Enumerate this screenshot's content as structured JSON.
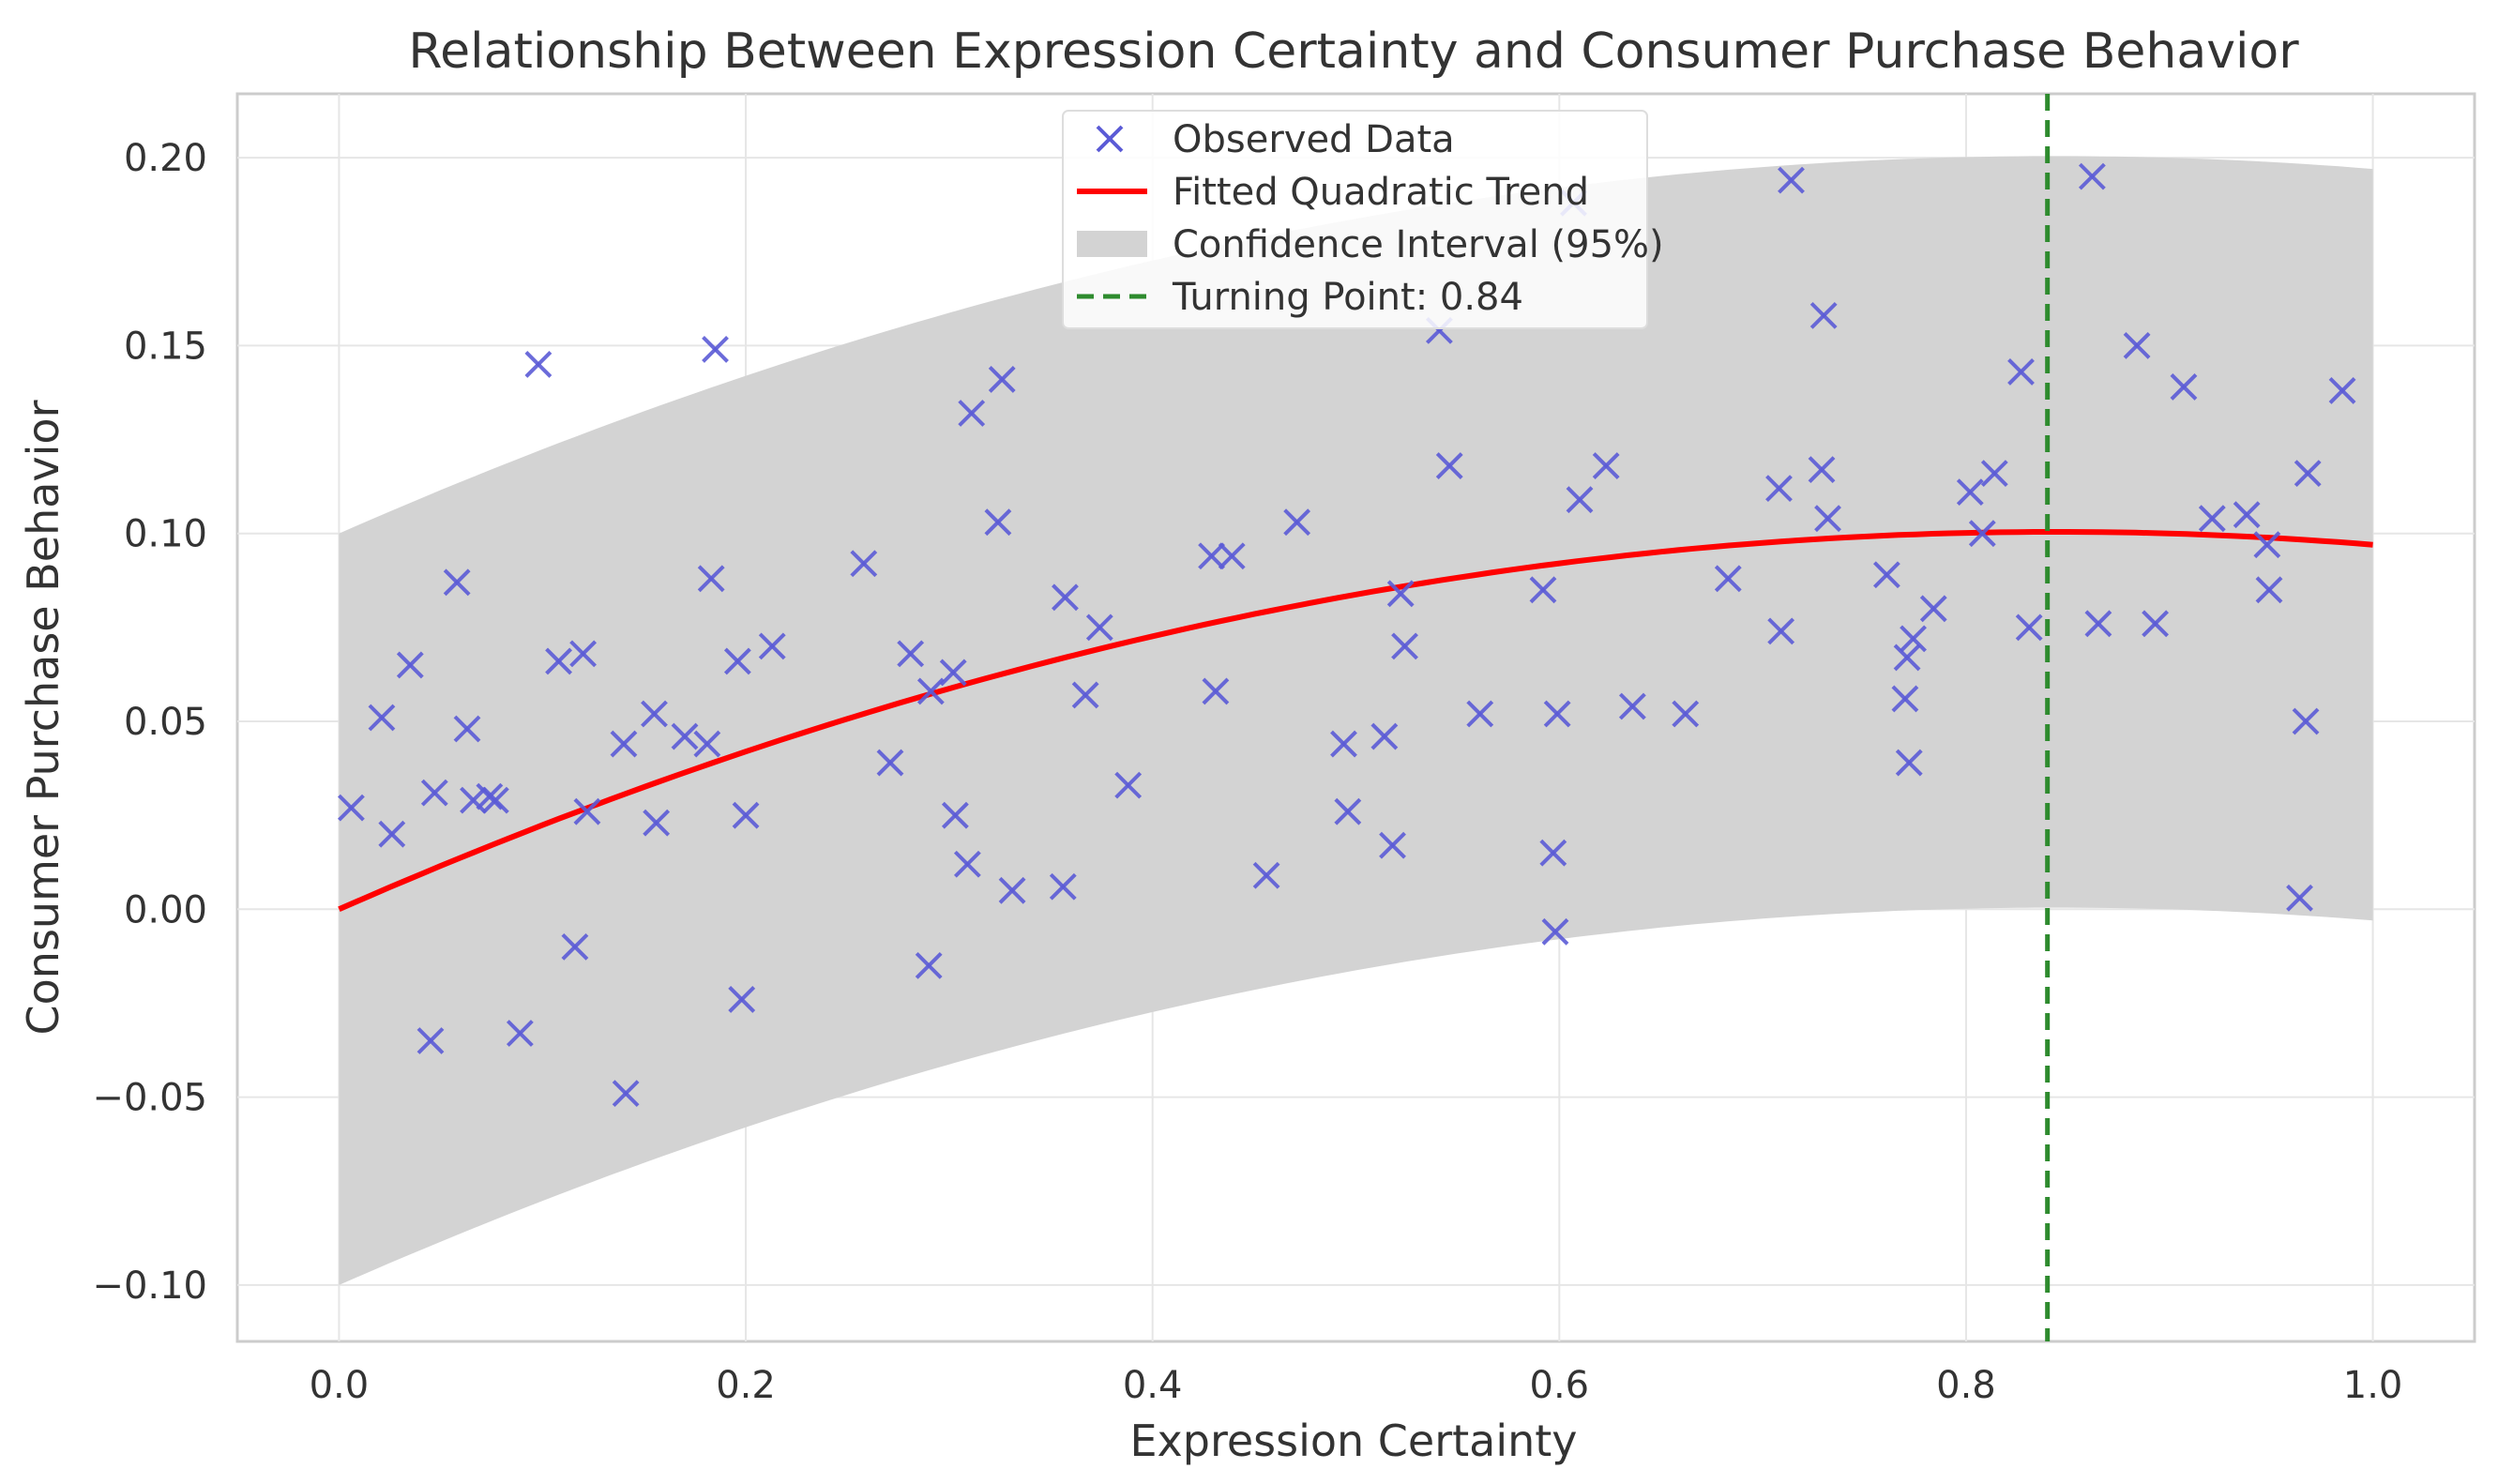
{
  "chart_data": {
    "type": "scatter",
    "title": "Relationship Between Expression Certainty and Consumer Purchase Behavior",
    "xlabel": "Expression Certainty",
    "ylabel": "Consumer Purchase Behavior",
    "xlim": [
      -0.05,
      1.05
    ],
    "ylim": [
      -0.115,
      0.217
    ],
    "xticks": [
      0.0,
      0.2,
      0.4,
      0.6,
      0.8,
      1.0
    ],
    "xtick_labels": [
      "0.0",
      "0.2",
      "0.4",
      "0.6",
      "0.8",
      "1.0"
    ],
    "yticks": [
      -0.1,
      -0.05,
      0.0,
      0.05,
      0.1,
      0.15,
      0.2
    ],
    "ytick_labels": [
      "−0.10",
      "−0.05",
      "0.00",
      "0.05",
      "0.10",
      "0.15",
      "0.20"
    ],
    "grid": true,
    "legend_position": "top-center",
    "legend": [
      {
        "label": "Observed Data",
        "kind": "marker-x",
        "color": "#5b5bd6"
      },
      {
        "label": "Fitted Quadratic Trend",
        "kind": "line",
        "color": "#ff0000"
      },
      {
        "label": "Confidence Interval (95%)",
        "kind": "patch",
        "color": "#d3d3d3"
      },
      {
        "label": "Turning Point: 0.84",
        "kind": "dashed-line",
        "color": "#2e8b2e"
      }
    ],
    "trend": {
      "a": -0.141,
      "b": 0.238,
      "c": 0.0,
      "x_range": [
        0.0,
        1.0
      ]
    },
    "confidence_band_halfwidth": 0.1,
    "turning_point": 0.84,
    "series": [
      {
        "name": "Observed Data",
        "color": "#5b5bd6",
        "points": [
          [
            0.006,
            0.027
          ],
          [
            0.021,
            0.051
          ],
          [
            0.026,
            0.02
          ],
          [
            0.035,
            0.065
          ],
          [
            0.045,
            -0.035
          ],
          [
            0.047,
            0.031
          ],
          [
            0.058,
            0.087
          ],
          [
            0.063,
            0.048
          ],
          [
            0.066,
            0.029
          ],
          [
            0.074,
            0.03
          ],
          [
            0.077,
            0.029
          ],
          [
            0.089,
            -0.033
          ],
          [
            0.098,
            0.145
          ],
          [
            0.108,
            0.066
          ],
          [
            0.116,
            -0.01
          ],
          [
            0.12,
            0.068
          ],
          [
            0.122,
            0.026
          ],
          [
            0.14,
            0.044
          ],
          [
            0.141,
            -0.049
          ],
          [
            0.155,
            0.052
          ],
          [
            0.156,
            0.023
          ],
          [
            0.17,
            0.046
          ],
          [
            0.181,
            0.044
          ],
          [
            0.183,
            0.088
          ],
          [
            0.185,
            0.149
          ],
          [
            0.196,
            0.066
          ],
          [
            0.198,
            -0.024
          ],
          [
            0.2,
            0.025
          ],
          [
            0.213,
            0.07
          ],
          [
            0.258,
            0.092
          ],
          [
            0.271,
            0.039
          ],
          [
            0.281,
            0.068
          ],
          [
            0.29,
            -0.015
          ],
          [
            0.291,
            0.058
          ],
          [
            0.302,
            0.063
          ],
          [
            0.303,
            0.025
          ],
          [
            0.309,
            0.012
          ],
          [
            0.311,
            0.132
          ],
          [
            0.324,
            0.103
          ],
          [
            0.326,
            0.141
          ],
          [
            0.331,
            0.005
          ],
          [
            0.356,
            0.006
          ],
          [
            0.357,
            0.083
          ],
          [
            0.367,
            0.057
          ],
          [
            0.374,
            0.075
          ],
          [
            0.388,
            0.033
          ],
          [
            0.429,
            0.094
          ],
          [
            0.431,
            0.058
          ],
          [
            0.439,
            0.094
          ],
          [
            0.456,
            0.009
          ],
          [
            0.471,
            0.103
          ],
          [
            0.494,
            0.044
          ],
          [
            0.496,
            0.026
          ],
          [
            0.514,
            0.046
          ],
          [
            0.518,
            0.017
          ],
          [
            0.522,
            0.084
          ],
          [
            0.524,
            0.07
          ],
          [
            0.541,
            0.154
          ],
          [
            0.546,
            0.118
          ],
          [
            0.561,
            0.052
          ],
          [
            0.592,
            0.085
          ],
          [
            0.597,
            0.015
          ],
          [
            0.598,
            -0.006
          ],
          [
            0.599,
            0.052
          ],
          [
            0.607,
            0.188
          ],
          [
            0.61,
            0.109
          ],
          [
            0.623,
            0.118
          ],
          [
            0.636,
            0.054
          ],
          [
            0.662,
            0.052
          ],
          [
            0.683,
            0.088
          ],
          [
            0.708,
            0.112
          ],
          [
            0.709,
            0.074
          ],
          [
            0.714,
            0.194
          ],
          [
            0.729,
            0.117
          ],
          [
            0.73,
            0.158
          ],
          [
            0.732,
            0.104
          ],
          [
            0.761,
            0.089
          ],
          [
            0.77,
            0.056
          ],
          [
            0.771,
            0.067
          ],
          [
            0.772,
            0.039
          ],
          [
            0.774,
            0.072
          ],
          [
            0.784,
            0.08
          ],
          [
            0.802,
            0.111
          ],
          [
            0.808,
            0.1
          ],
          [
            0.814,
            0.116
          ],
          [
            0.827,
            0.143
          ],
          [
            0.831,
            0.075
          ],
          [
            0.862,
            0.195
          ],
          [
            0.865,
            0.076
          ],
          [
            0.884,
            0.15
          ],
          [
            0.893,
            0.076
          ],
          [
            0.907,
            0.139
          ],
          [
            0.921,
            0.104
          ],
          [
            0.938,
            0.105
          ],
          [
            0.948,
            0.097
          ],
          [
            0.949,
            0.085
          ],
          [
            0.964,
            0.003
          ],
          [
            0.967,
            0.05
          ],
          [
            0.968,
            0.116
          ],
          [
            0.985,
            0.138
          ]
        ]
      }
    ]
  }
}
